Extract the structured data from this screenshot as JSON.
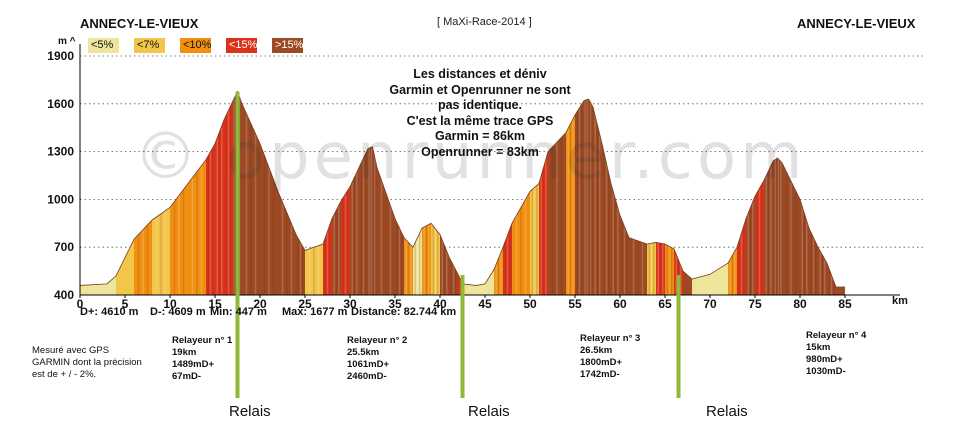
{
  "header": {
    "start": "ANNECY-LE-VIEUX",
    "race": "[ MaXi-Race-2014 ]",
    "finish": "ANNECY-LE-VIEUX"
  },
  "legend": [
    {
      "label": "<5%",
      "color": "#ece59a"
    },
    {
      "label": "<7%",
      "color": "#f2c64a"
    },
    {
      "label": "<10%",
      "color": "#f08f10"
    },
    {
      "label": "<15%",
      "color": "#d9341b"
    },
    {
      "label": ">15%",
      "color": "#9c4a24"
    }
  ],
  "stats": {
    "d_plus": "D+: 4610 m",
    "d_minus": "D-: 4609 m",
    "min": "Min: 447 m",
    "max": "Max: 1677 m",
    "distance": "Distance: 82.744 km"
  },
  "note": [
    "Les distances et déniv",
    "Garmin et Openrunner ne sont",
    "pas identique.",
    "C'est la même trace GPS",
    "Garmin = 86km",
    "Openrunner = 83km"
  ],
  "gps_note": "Mesuré avec GPS GARMIN dont la précision est de + / - 2%.",
  "relays": [
    {
      "name": "Relayeur n° 1",
      "distance": "19km",
      "d_plus": "1489mD+",
      "d_minus": "67mD-"
    },
    {
      "name": "Relayeur n° 2",
      "distance": "25.5km",
      "d_plus": "1061mD+",
      "d_minus": "2460mD-"
    },
    {
      "name": "Relayeur n° 3",
      "distance": "26.5km",
      "d_plus": "1800mD+",
      "d_minus": "1742mD-"
    },
    {
      "name": "Relayeur n° 4",
      "distance": "15km",
      "d_plus": "980mD+",
      "d_minus": "1030mD-"
    }
  ],
  "relais_label": "Relais",
  "watermark": "© openrunner.com",
  "chart_data": {
    "type": "area",
    "xlabel": "km",
    "ylabel": "m",
    "xlim": [
      0,
      90
    ],
    "ylim": [
      400,
      1900
    ],
    "x_ticks": [
      0,
      5,
      10,
      15,
      20,
      25,
      30,
      35,
      40,
      45,
      50,
      55,
      60,
      65,
      70,
      75,
      80,
      85
    ],
    "y_ticks": [
      400,
      700,
      1000,
      1300,
      1600,
      1900
    ],
    "relay_points_km": [
      17.5,
      42.5,
      66.5
    ],
    "x": [
      0,
      3,
      4,
      6,
      8,
      10,
      12,
      14,
      15,
      16,
      17,
      17.5,
      18,
      20,
      22,
      24,
      25,
      27,
      28,
      29,
      30,
      31,
      32,
      32.5,
      33,
      35,
      36,
      37,
      38,
      39,
      40,
      41,
      42,
      42.5,
      44,
      45,
      46,
      47,
      48,
      50,
      51,
      52,
      54,
      55,
      56,
      56.5,
      57,
      58,
      59,
      60,
      61,
      63,
      64,
      65,
      66,
      67,
      68,
      70,
      72,
      73,
      74,
      75,
      76,
      77,
      77.5,
      78,
      80,
      81,
      82,
      83,
      84,
      85
    ],
    "y": [
      460,
      470,
      520,
      750,
      870,
      950,
      1100,
      1250,
      1350,
      1500,
      1620,
      1677,
      1600,
      1350,
      1050,
      780,
      680,
      720,
      880,
      990,
      1080,
      1200,
      1320,
      1330,
      1200,
      880,
      760,
      700,
      820,
      850,
      780,
      640,
      530,
      470,
      460,
      470,
      560,
      700,
      850,
      1050,
      1100,
      1300,
      1420,
      1530,
      1620,
      1630,
      1580,
      1350,
      1100,
      900,
      760,
      720,
      730,
      720,
      690,
      550,
      500,
      530,
      600,
      700,
      880,
      1020,
      1120,
      1240,
      1260,
      1230,
      1000,
      820,
      700,
      600,
      450,
      450
    ],
    "slope_classes": [
      "<5%",
      "<5%",
      "<7%",
      "<10%",
      "<7%",
      "<10%",
      "<10%",
      "<15%",
      "<15%",
      "<15%",
      ">15%",
      ">15%",
      ">15%",
      ">15%",
      ">15%",
      ">15%",
      "<7%",
      "<15%",
      ">15%",
      "<15%",
      ">15%",
      ">15%",
      ">15%",
      ">15%",
      ">15%",
      ">15%",
      "<10%",
      "<5%",
      "<10%",
      "<7%",
      ">15%",
      ">15%",
      "<15%",
      "<5%",
      "<5%",
      "<5%",
      "<10%",
      "<15%",
      "<10%",
      "<7%",
      "<15%",
      ">15%",
      "<10%",
      ">15%",
      ">15%",
      ">15%",
      ">15%",
      ">15%",
      ">15%",
      ">15%",
      ">15%",
      "<7%",
      "<15%",
      "<10%",
      "<15%",
      ">15%",
      "<5%",
      "<5%",
      "<10%",
      "<15%",
      ">15%",
      "<15%",
      ">15%",
      ">15%",
      ">15%",
      ">15%",
      ">15%",
      ">15%",
      ">15%",
      ">15%",
      ">15%",
      "<5%"
    ]
  }
}
